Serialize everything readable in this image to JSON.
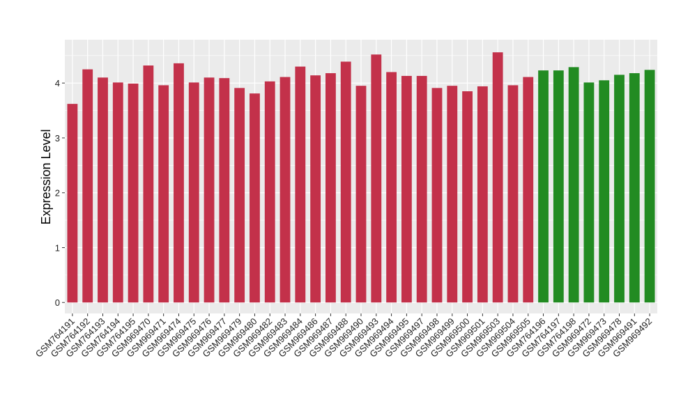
{
  "chart_data": {
    "type": "bar",
    "title": "",
    "xlabel": "",
    "ylabel": "Expression Level",
    "ylim": [
      -0.2,
      4.79
    ],
    "yticks": [
      0,
      1,
      2,
      3,
      4
    ],
    "grid": true,
    "legend": "none",
    "colors": {
      "group1": "#C3314A",
      "group2": "#228B22",
      "panel": "#EBEBEB",
      "gridline": "#FFFFFF"
    },
    "categories": [
      "GSM764191",
      "GSM764192",
      "GSM764193",
      "GSM764194",
      "GSM764195",
      "GSM969470",
      "GSM969471",
      "GSM969474",
      "GSM969475",
      "GSM969476",
      "GSM969477",
      "GSM969479",
      "GSM969480",
      "GSM969482",
      "GSM969483",
      "GSM969484",
      "GSM969486",
      "GSM969487",
      "GSM969488",
      "GSM969490",
      "GSM969493",
      "GSM969494",
      "GSM969495",
      "GSM969497",
      "GSM969498",
      "GSM969499",
      "GSM969500",
      "GSM969501",
      "GSM969503",
      "GSM969504",
      "GSM969505",
      "GSM764196",
      "GSM764197",
      "GSM764198",
      "GSM969472",
      "GSM969473",
      "GSM969478",
      "GSM969491",
      "GSM969492"
    ],
    "values": [
      3.62,
      4.25,
      4.1,
      4.01,
      3.99,
      4.32,
      3.96,
      4.36,
      4.01,
      4.1,
      4.09,
      3.91,
      3.81,
      4.03,
      4.11,
      4.3,
      4.14,
      4.18,
      4.39,
      3.95,
      4.52,
      4.2,
      4.13,
      4.13,
      3.91,
      3.95,
      3.85,
      3.94,
      4.56,
      3.96,
      4.11,
      4.23,
      4.23,
      4.29,
      4.01,
      4.05,
      4.15,
      4.18,
      4.24
    ],
    "groups": [
      1,
      1,
      1,
      1,
      1,
      1,
      1,
      1,
      1,
      1,
      1,
      1,
      1,
      1,
      1,
      1,
      1,
      1,
      1,
      1,
      1,
      1,
      1,
      1,
      1,
      1,
      1,
      1,
      1,
      1,
      1,
      2,
      2,
      2,
      2,
      2,
      2,
      2,
      2
    ]
  }
}
